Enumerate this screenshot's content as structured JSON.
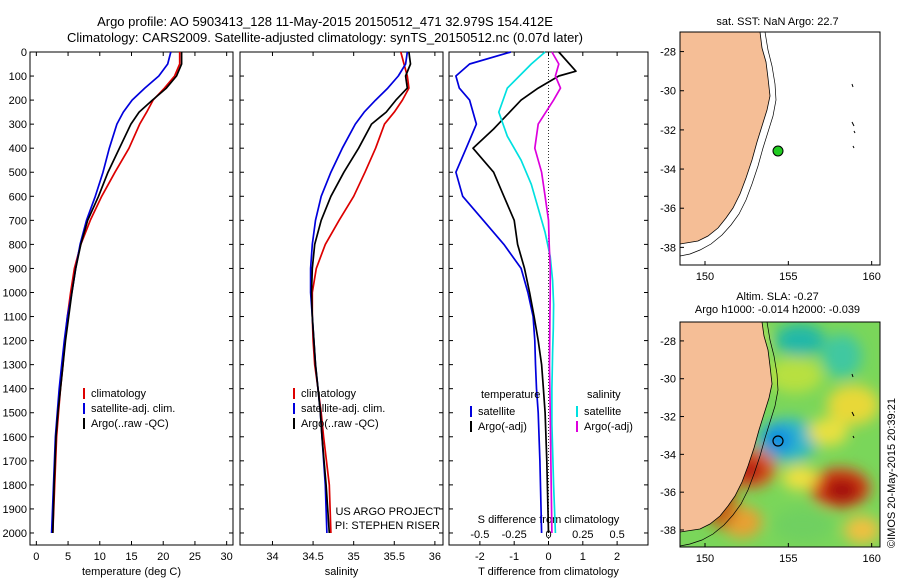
{
  "header": {
    "line1": "Argo profile: AO 5903413_128 11-May-2015 20150512_471 32.979S 154.412E",
    "line2": "Climatology: CARS2009. Satellite-adjusted climatology: synTS_20150512.nc (0.07d later)"
  },
  "sst_map": {
    "title": "sat. SST: NaN Argo: 22.7"
  },
  "sla_map": {
    "title1": "Altim. SLA: -0.27",
    "title2": "Argo h1000: -0.014 h2000: -0.039"
  },
  "timestamp": "©IMOS 20-May-2015 20:39:21",
  "project_note": {
    "line1": "US ARGO PROJECT",
    "line2": "PI: STEPHEN RISER"
  },
  "colors": {
    "climatology": "#dd0000",
    "satellite": "#0000dd",
    "argo": "#000000",
    "sal_satellite": "#00e0e0",
    "sal_argo": "#dd00dd",
    "land": "#f5be96"
  },
  "chart_data": [
    {
      "type": "line",
      "xlabel": "temperature (deg C)",
      "xlim": [
        -1,
        31
      ],
      "ylim": [
        2050,
        0
      ],
      "xticks": [
        0,
        5,
        10,
        15,
        20,
        25,
        30
      ],
      "yticks": [
        0,
        100,
        200,
        300,
        400,
        500,
        600,
        700,
        800,
        900,
        1000,
        1100,
        1200,
        1300,
        1400,
        1500,
        1600,
        1700,
        1800,
        1900,
        2000
      ],
      "legend": [
        "climatology",
        "satellite-adj. clim.",
        "Argo(..raw -QC)"
      ],
      "series": [
        {
          "name": "climatology",
          "color": "#dd0000",
          "x": [
            22.6,
            22.6,
            21.8,
            20.2,
            18.4,
            17.4,
            16.3,
            14.6,
            12.4,
            10.3,
            8.5,
            7.0,
            6.0,
            5.4,
            4.9,
            4.5,
            4.2,
            3.8,
            3.5,
            3.2,
            2.9,
            2.6
          ],
          "y": [
            0,
            50,
            100,
            150,
            200,
            250,
            300,
            400,
            500,
            600,
            700,
            800,
            900,
            1000,
            1100,
            1200,
            1300,
            1400,
            1500,
            1600,
            1800,
            2000
          ]
        },
        {
          "name": "satellite-adj. clim.",
          "color": "#0000dd",
          "x": [
            21.2,
            20.7,
            19.3,
            17.1,
            15.1,
            13.7,
            12.7,
            11.5,
            10.5,
            9.3,
            7.9,
            6.9,
            6.2,
            5.6,
            4.9,
            4.4,
            4.0,
            3.6,
            3.3,
            3.0,
            2.7,
            2.4
          ],
          "y": [
            0,
            50,
            100,
            150,
            200,
            250,
            300,
            400,
            500,
            600,
            700,
            800,
            900,
            1000,
            1100,
            1200,
            1300,
            1400,
            1500,
            1600,
            1800,
            2000
          ]
        },
        {
          "name": "Argo(..raw -QC)",
          "color": "#000000",
          "x": [
            22.9,
            22.9,
            22.1,
            20.5,
            18.3,
            16.2,
            14.9,
            13.1,
            11.3,
            9.8,
            8.1,
            7.0,
            6.2,
            5.6,
            5.1,
            4.6,
            4.2,
            3.8,
            3.4,
            3.1,
            2.8,
            2.6
          ],
          "y": [
            0,
            50,
            100,
            150,
            200,
            250,
            300,
            400,
            500,
            600,
            700,
            800,
            900,
            1000,
            1100,
            1200,
            1300,
            1400,
            1500,
            1600,
            1800,
            2000
          ]
        }
      ]
    },
    {
      "type": "line",
      "xlabel": "salinity",
      "xlim": [
        33.6,
        36.1
      ],
      "ylim": [
        2050,
        0
      ],
      "xticks": [
        34,
        34.5,
        35,
        35.5,
        36
      ],
      "legend": [
        "climatology",
        "satellite-adj. clim.",
        "Argo(..raw -QC)"
      ],
      "series": [
        {
          "name": "climatology",
          "color": "#dd0000",
          "x": [
            35.58,
            35.62,
            35.66,
            35.68,
            35.6,
            35.5,
            35.38,
            35.27,
            35.14,
            35.0,
            34.82,
            34.65,
            34.54,
            34.49,
            34.49,
            34.5,
            34.52,
            34.56,
            34.6,
            34.63,
            34.7,
            34.72
          ],
          "y": [
            0,
            50,
            100,
            150,
            200,
            250,
            300,
            400,
            500,
            600,
            700,
            800,
            900,
            1000,
            1100,
            1200,
            1300,
            1400,
            1500,
            1600,
            1800,
            2000
          ]
        },
        {
          "name": "satellite-adj. clim.",
          "color": "#0000dd",
          "x": [
            35.66,
            35.64,
            35.55,
            35.42,
            35.27,
            35.13,
            35.02,
            34.86,
            34.72,
            34.6,
            34.53,
            34.49,
            34.47,
            34.47,
            34.49,
            34.51,
            34.53,
            34.56,
            34.59,
            34.61,
            34.65,
            34.67
          ],
          "y": [
            0,
            50,
            100,
            150,
            200,
            250,
            300,
            400,
            500,
            600,
            700,
            800,
            900,
            1000,
            1100,
            1200,
            1300,
            1400,
            1500,
            1600,
            1800,
            2000
          ]
        },
        {
          "name": "Argo(..raw -QC)",
          "color": "#000000",
          "x": [
            35.68,
            35.7,
            35.64,
            35.66,
            35.52,
            35.4,
            35.22,
            35.06,
            34.88,
            34.72,
            34.6,
            34.52,
            34.49,
            34.48,
            34.49,
            34.51,
            34.53,
            34.56,
            34.59,
            34.61,
            34.66,
            34.7
          ],
          "y": [
            0,
            50,
            100,
            150,
            200,
            250,
            300,
            400,
            500,
            600,
            700,
            800,
            900,
            1000,
            1100,
            1200,
            1300,
            1400,
            1500,
            1600,
            1800,
            2000
          ]
        }
      ]
    },
    {
      "type": "line",
      "xlabel": "T difference from climatology",
      "xlabel_top": "S difference from climatology",
      "xlim": [
        -2.9,
        2.9
      ],
      "ylim": [
        2050,
        0
      ],
      "xticks": [
        -2,
        -1,
        0,
        1,
        2
      ],
      "xticks_top": [
        "-0.5",
        "-0.25",
        "0",
        "0.25",
        "0.5"
      ],
      "xticks_top_pos": [
        -2,
        -1,
        0,
        1,
        2
      ],
      "legend_groups": [
        {
          "title": "temperature",
          "entries": [
            "satellite",
            "Argo(-adj)"
          ]
        },
        {
          "title": "salinity",
          "entries": [
            "satellite",
            "Argo(-adj)"
          ]
        }
      ],
      "series": [
        {
          "name": "satellite",
          "group": "temperature",
          "color": "#0000dd",
          "x": [
            -1.1,
            -2.3,
            -2.7,
            -2.6,
            -2.3,
            -2.1,
            -2.4,
            -2.7,
            -2.5,
            -1.9,
            -1.3,
            -0.8,
            -0.6,
            -0.45,
            -0.4,
            -0.38,
            -0.35,
            -0.3,
            -0.25,
            -0.2
          ],
          "y": [
            0,
            50,
            100,
            150,
            200,
            300,
            400,
            500,
            600,
            700,
            800,
            900,
            1000,
            1100,
            1200,
            1300,
            1400,
            1500,
            1700,
            2000
          ]
        },
        {
          "name": "Argo(-adj)",
          "group": "temperature",
          "color": "#000000",
          "x": [
            0.3,
            0.8,
            0.3,
            -0.3,
            -0.8,
            -1.6,
            -2.2,
            -1.6,
            -1.3,
            -1.0,
            -0.9,
            -0.7,
            -0.55,
            -0.42,
            -0.3,
            -0.2,
            -0.15,
            -0.1,
            -0.05,
            0.0
          ],
          "y": [
            0,
            80,
            100,
            150,
            200,
            320,
            400,
            500,
            600,
            700,
            800,
            900,
            1000,
            1100,
            1200,
            1300,
            1400,
            1500,
            1700,
            2000
          ]
        },
        {
          "name": "satellite",
          "group": "salinity",
          "color": "#00e0e0",
          "x": [
            -0.1,
            -0.5,
            -1.2,
            -1.45,
            -1.2,
            -0.8,
            -0.5,
            -0.3,
            -0.1,
            0.05,
            0.12,
            0.15,
            0.14,
            0.12,
            0.1,
            0.1,
            0.15,
            0.2
          ],
          "y": [
            0,
            50,
            150,
            250,
            350,
            450,
            550,
            650,
            750,
            850,
            950,
            1050,
            1150,
            1250,
            1400,
            1550,
            1800,
            2000
          ]
        },
        {
          "name": "Argo(-adj)",
          "group": "salinity",
          "color": "#dd00dd",
          "x": [
            0.1,
            0.3,
            0.2,
            0.35,
            0.15,
            -0.3,
            -0.4,
            -0.2,
            -0.1,
            0.0,
            0.02,
            0.05,
            0.05,
            0.04,
            0.03,
            0.05,
            0.08,
            0.1
          ],
          "y": [
            0,
            50,
            100,
            150,
            200,
            300,
            400,
            500,
            600,
            700,
            800,
            900,
            1000,
            1100,
            1300,
            1500,
            1800,
            2000
          ]
        }
      ]
    },
    {
      "type": "map",
      "title": "sat. SST: NaN Argo: 22.7",
      "xlim": [
        148.5,
        160.5
      ],
      "ylim": [
        -38.9,
        -27
      ],
      "xticks": [
        150,
        155,
        160
      ],
      "yticks": [
        -28,
        -30,
        -32,
        -34,
        -36,
        -38
      ],
      "float_position": {
        "lon": 154.412,
        "lat": -32.979
      }
    },
    {
      "type": "heatmap",
      "title": "Altim. SLA: -0.27",
      "xlim": [
        148.5,
        160.5
      ],
      "ylim": [
        -38.9,
        -27
      ],
      "xticks": [
        150,
        155,
        160
      ],
      "yticks": [
        -28,
        -30,
        -32,
        -34,
        -36,
        -38
      ],
      "float_position": {
        "lon": 154.412,
        "lat": -32.979
      }
    }
  ]
}
